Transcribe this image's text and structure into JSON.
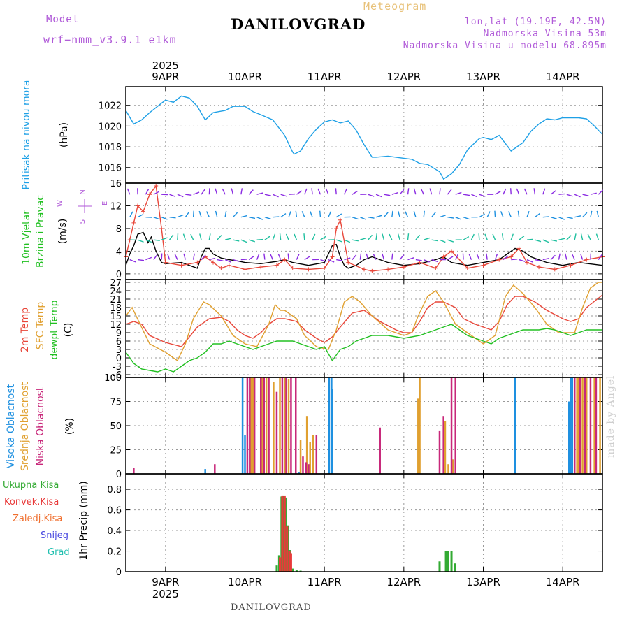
{
  "header": {
    "meteogram_label": "Meteogram",
    "station": "DANILOVGRAD",
    "model_label": "Model",
    "model_name": "wrf−nmm_v3.9.1  e1km",
    "loc_line1": "lon,lat (19.19E, 42.5N)",
    "loc_line2": "Nadmorska Visina 53m",
    "loc_line3": "Nadmorska Visina u modelu 68.895m"
  },
  "footer": {
    "station": "DANILOVGRAD",
    "watermark": "made by Angel"
  },
  "colors": {
    "pressure": "#1ea0e6",
    "temp2m": "#e8473a",
    "sfc": "#e0a030",
    "dewpt": "#22c022",
    "cloud_high": "#1e90e0",
    "cloud_mid": "#e0a030",
    "cloud_low": "#c8287a",
    "precip_total": "#33aa33",
    "precip_conv": "#e83a3a",
    "precip_frz": "#f07030",
    "precip_snow": "#4a4ae0",
    "precip_grad": "#22c0b0",
    "wind_text": "#22c022",
    "wind_units": "#b05ad8"
  },
  "chart_data": [
    {
      "type": "line",
      "panel": "pressure",
      "ylabel_lines": [
        "Pritisak na nivou mora",
        "(hPa)"
      ],
      "ylim": [
        1014.5,
        1023.8
      ],
      "yticks": [
        1016,
        1018,
        1020,
        1022
      ],
      "grid": true,
      "x_axis": {
        "year": "2025",
        "day_labels": [
          "9APR",
          "10APR",
          "11APR",
          "12APR",
          "13APR",
          "14APR"
        ],
        "xlim_days": [
          8.5,
          14.5
        ],
        "day_positions": [
          9,
          10,
          11,
          12,
          13,
          14
        ]
      },
      "series": [
        {
          "color_key": "pressure",
          "x": [
            8.5,
            8.6,
            8.7,
            8.8,
            8.95,
            9.0,
            9.1,
            9.2,
            9.3,
            9.4,
            9.5,
            9.6,
            9.75,
            9.85,
            10.0,
            10.1,
            10.2,
            10.35,
            10.5,
            10.6,
            10.62,
            10.7,
            10.8,
            10.9,
            11.0,
            11.1,
            11.2,
            11.3,
            11.4,
            11.5,
            11.6,
            11.65,
            11.8,
            12.0,
            12.1,
            12.2,
            12.3,
            12.45,
            12.5,
            12.6,
            12.7,
            12.8,
            12.95,
            13.0,
            13.1,
            13.2,
            13.3,
            13.35,
            13.5,
            13.6,
            13.7,
            13.8,
            13.9,
            14.0,
            14.1,
            14.2,
            14.3,
            14.4,
            14.5
          ],
          "values": [
            1021.5,
            1020.2,
            1020.6,
            1021.3,
            1022.2,
            1022.5,
            1022.3,
            1022.9,
            1022.7,
            1021.9,
            1020.6,
            1021.3,
            1021.5,
            1021.9,
            1021.9,
            1021.4,
            1021.1,
            1020.6,
            1019.1,
            1017.5,
            1017.3,
            1017.6,
            1018.8,
            1019.7,
            1020.4,
            1020.6,
            1020.3,
            1020.5,
            1019.6,
            1018.2,
            1017.0,
            1017.0,
            1017.1,
            1016.9,
            1016.8,
            1016.4,
            1016.3,
            1015.6,
            1014.9,
            1015.4,
            1016.3,
            1017.7,
            1018.8,
            1018.9,
            1018.7,
            1019.1,
            1018.1,
            1017.6,
            1018.4,
            1019.5,
            1020.2,
            1020.7,
            1020.6,
            1020.8,
            1020.8,
            1020.8,
            1020.7,
            1020.0,
            1019.2
          ]
        }
      ]
    },
    {
      "type": "line",
      "panel": "wind",
      "ylabel_lines": [
        "10m Vjetar",
        "Brzina i Pravac",
        "(m/s)"
      ],
      "compass_labels": [
        "N",
        "W",
        "E",
        "S"
      ],
      "ylim": [
        -1,
        16
      ],
      "yticks": [
        0,
        4,
        8,
        12,
        16
      ],
      "grid": true,
      "series": [
        {
          "name": "wind speed",
          "color": "#000000",
          "x": [
            8.5,
            8.55,
            8.6,
            8.65,
            8.72,
            8.78,
            8.82,
            8.88,
            8.95,
            9.0,
            9.1,
            9.2,
            9.3,
            9.4,
            9.45,
            9.5,
            9.55,
            9.6,
            9.7,
            9.8,
            9.9,
            10.0,
            10.2,
            10.4,
            10.5,
            10.6,
            10.8,
            11.0,
            11.05,
            11.1,
            11.15,
            11.2,
            11.25,
            11.3,
            11.4,
            11.5,
            11.6,
            11.8,
            12.0,
            12.2,
            12.4,
            12.5,
            12.6,
            12.8,
            13.0,
            13.2,
            13.3,
            13.4,
            13.5,
            13.6,
            13.7,
            13.8,
            14.0,
            14.2,
            14.5
          ],
          "values": [
            1.5,
            3.5,
            5.0,
            7.0,
            7.3,
            5.5,
            6.5,
            4.0,
            2.0,
            1.8,
            1.9,
            2.0,
            1.5,
            1.0,
            3.0,
            4.5,
            4.5,
            3.5,
            2.8,
            2.5,
            2.3,
            2.0,
            1.8,
            2.2,
            2.5,
            2.0,
            1.5,
            2.0,
            3.5,
            5.0,
            5.2,
            3.0,
            1.5,
            1.0,
            1.5,
            2.5,
            3.0,
            2.0,
            1.5,
            1.8,
            2.5,
            3.0,
            2.0,
            1.5,
            2.0,
            2.5,
            3.5,
            4.5,
            4.0,
            3.0,
            2.5,
            2.0,
            1.5,
            2.0,
            1.5
          ]
        },
        {
          "name": "gust",
          "color": "#e8473a",
          "x": [
            8.5,
            8.55,
            8.6,
            8.65,
            8.72,
            8.8,
            8.88,
            8.95,
            9.0,
            9.2,
            9.4,
            9.5,
            9.6,
            9.7,
            9.8,
            10.0,
            10.2,
            10.4,
            10.5,
            10.6,
            10.8,
            11.0,
            11.1,
            11.15,
            11.2,
            11.3,
            11.5,
            11.6,
            11.8,
            12.0,
            12.2,
            12.4,
            12.5,
            12.6,
            12.8,
            13.0,
            13.2,
            13.35,
            13.45,
            13.55,
            13.7,
            13.9,
            14.1,
            14.3,
            14.5
          ],
          "values": [
            3.0,
            6.0,
            9.0,
            12.0,
            11.0,
            14.0,
            15.5,
            8.0,
            2.0,
            1.5,
            2.0,
            3.0,
            2.0,
            1.0,
            1.5,
            0.8,
            1.2,
            1.5,
            2.5,
            1.0,
            0.8,
            1.0,
            3.0,
            8.0,
            9.5,
            2.0,
            0.8,
            0.5,
            0.8,
            1.2,
            2.0,
            1.0,
            3.0,
            4.0,
            1.0,
            1.5,
            2.5,
            3.0,
            4.5,
            2.0,
            1.2,
            0.8,
            1.5,
            2.5,
            3.0
          ]
        }
      ]
    },
    {
      "type": "line",
      "panel": "temperature",
      "ylabel_lines": [
        "2m Temp",
        "SFC Temp",
        "dewpt Temp",
        "(C)"
      ],
      "ylim": [
        -7,
        28
      ],
      "yticks": [
        -6,
        -3,
        0,
        3,
        6,
        9,
        12,
        15,
        18,
        21,
        24,
        27
      ],
      "grid": true,
      "series": [
        {
          "color_key": "temp2m",
          "x": [
            8.5,
            8.6,
            8.7,
            8.8,
            9.0,
            9.2,
            9.3,
            9.4,
            9.55,
            9.7,
            9.8,
            9.9,
            10.0,
            10.1,
            10.2,
            10.3,
            10.4,
            10.5,
            10.65,
            10.75,
            10.9,
            11.0,
            11.1,
            11.2,
            11.35,
            11.5,
            11.6,
            11.7,
            11.9,
            12.0,
            12.1,
            12.2,
            12.3,
            12.4,
            12.5,
            12.65,
            12.75,
            12.9,
            13.1,
            13.2,
            13.3,
            13.4,
            13.5,
            13.65,
            13.8,
            14.0,
            14.1,
            14.2,
            14.3,
            14.5
          ],
          "values": [
            12.0,
            13.0,
            12.0,
            8.0,
            5.5,
            4.0,
            7.5,
            11.0,
            14.0,
            14.5,
            13.0,
            10.0,
            8.0,
            7.0,
            9.0,
            12.0,
            14.0,
            14.0,
            13.0,
            10.0,
            7.0,
            5.5,
            7.5,
            11.0,
            16.0,
            17.0,
            15.0,
            13.0,
            10.0,
            9.0,
            9.0,
            13.0,
            18.0,
            20.0,
            20.0,
            18.0,
            14.0,
            12.0,
            10.0,
            13.0,
            19.0,
            22.0,
            22.0,
            20.0,
            17.0,
            14.0,
            13.0,
            14.0,
            18.0,
            22.5
          ]
        },
        {
          "color_key": "sfc",
          "x": [
            8.5,
            8.58,
            8.68,
            8.8,
            9.0,
            9.15,
            9.25,
            9.35,
            9.48,
            9.55,
            9.7,
            9.85,
            10.0,
            10.15,
            10.3,
            10.38,
            10.45,
            10.5,
            10.65,
            10.75,
            10.9,
            11.05,
            11.15,
            11.25,
            11.35,
            11.45,
            11.6,
            11.8,
            12.0,
            12.1,
            12.18,
            12.3,
            12.4,
            12.5,
            12.65,
            12.8,
            13.0,
            13.15,
            13.28,
            13.38,
            13.5,
            13.65,
            13.8,
            13.95,
            14.15,
            14.25,
            14.35,
            14.45,
            14.5
          ],
          "values": [
            15.0,
            18.0,
            12.0,
            5.0,
            2.0,
            -1.0,
            5.0,
            14.0,
            20.0,
            19.0,
            15.0,
            8.0,
            5.0,
            4.0,
            12.0,
            19.0,
            17.0,
            17.0,
            14.0,
            8.0,
            4.0,
            3.0,
            10.0,
            20.0,
            22.0,
            20.0,
            15.0,
            10.0,
            8.0,
            9.0,
            15.0,
            22.0,
            24.0,
            20.0,
            12.0,
            9.0,
            5.0,
            8.0,
            22.0,
            26.0,
            23.0,
            18.0,
            12.0,
            9.0,
            9.0,
            18.0,
            25.0,
            27.0,
            27.0
          ]
        },
        {
          "color_key": "dewpt",
          "x": [
            8.5,
            8.6,
            8.7,
            8.8,
            8.9,
            9.0,
            9.1,
            9.2,
            9.3,
            9.4,
            9.5,
            9.6,
            9.7,
            9.8,
            9.9,
            10.0,
            10.1,
            10.2,
            10.3,
            10.4,
            10.5,
            10.6,
            10.7,
            10.8,
            10.9,
            11.0,
            11.1,
            11.2,
            11.3,
            11.4,
            11.5,
            11.6,
            11.7,
            11.8,
            11.9,
            12.0,
            12.1,
            12.2,
            12.3,
            12.4,
            12.5,
            12.6,
            12.7,
            12.8,
            12.9,
            13.0,
            13.1,
            13.2,
            13.3,
            13.4,
            13.5,
            13.6,
            13.7,
            13.8,
            13.9,
            14.0,
            14.1,
            14.2,
            14.3,
            14.4,
            14.5
          ],
          "values": [
            2.0,
            -2.0,
            -4.0,
            -4.5,
            -5.0,
            -4.0,
            -5.0,
            -3.0,
            -1.0,
            0.0,
            2.0,
            5.0,
            5.0,
            6.0,
            5.0,
            4.0,
            3.0,
            4.0,
            5.0,
            6.0,
            6.0,
            6.0,
            5.0,
            4.0,
            3.0,
            4.0,
            -1.0,
            3.0,
            4.0,
            6.0,
            7.0,
            8.0,
            8.0,
            8.0,
            7.5,
            7.0,
            7.5,
            8.0,
            9.0,
            10.0,
            11.0,
            12.0,
            10.0,
            8.0,
            7.0,
            6.0,
            5.0,
            7.0,
            8.0,
            9.0,
            10.0,
            10.0,
            10.0,
            10.5,
            10.0,
            9.0,
            8.0,
            9.0,
            10.0,
            10.0,
            10.0
          ]
        }
      ]
    },
    {
      "type": "bar",
      "panel": "cloud",
      "ylabel_lines": [
        "Visoka Oblacnost",
        "Srednja Oblacnost",
        "Niska Oblacnost",
        "(%)"
      ],
      "ylim": [
        0,
        100
      ],
      "yticks": [
        0,
        25,
        50,
        75,
        100
      ],
      "grid": true,
      "series": [
        {
          "color_key": "cloud_high",
          "x": [
            9.5,
            9.97,
            10.0,
            10.68,
            11.06,
            11.09,
            11.1,
            13.4,
            14.08,
            14.1,
            14.12
          ],
          "values": [
            5,
            100,
            40,
            2,
            100,
            100,
            88,
            100,
            75,
            100,
            100
          ]
        },
        {
          "color_key": "cloud_mid",
          "x": [
            10.08,
            10.1,
            10.22,
            10.27,
            10.36,
            10.44,
            10.5,
            10.55,
            10.7,
            10.78,
            10.82,
            10.86,
            12.18,
            12.2,
            12.52,
            12.56,
            12.62,
            14.18,
            14.2,
            14.25,
            14.3,
            14.4,
            14.47
          ],
          "values": [
            100,
            100,
            100,
            100,
            95,
            100,
            100,
            98,
            35,
            60,
            33,
            40,
            78,
            100,
            55,
            10,
            15,
            100,
            100,
            100,
            100,
            100,
            100
          ]
        },
        {
          "color_key": "cloud_low",
          "x": [
            8.6,
            9.62,
            10.03,
            10.06,
            10.12,
            10.2,
            10.24,
            10.3,
            10.4,
            10.47,
            10.52,
            10.58,
            10.64,
            10.73,
            10.77,
            10.8,
            10.9,
            11.7,
            12.45,
            12.5,
            12.6,
            12.65,
            14.15,
            14.22,
            14.28,
            14.35,
            14.42
          ],
          "values": [
            6,
            10,
            100,
            100,
            100,
            100,
            100,
            100,
            85,
            100,
            100,
            100,
            100,
            18,
            12,
            10,
            40,
            48,
            45,
            60,
            100,
            100,
            100,
            100,
            100,
            100,
            100
          ]
        }
      ]
    },
    {
      "type": "bar",
      "panel": "precip",
      "ylabel_lines": [
        "1hr Precip (mm)"
      ],
      "legend": [
        "Ukupna Kisa",
        "Konvek.Kisa",
        "Zaledj.Kisa",
        "Snijeg",
        "Grad"
      ],
      "ylim": [
        0,
        0.95
      ],
      "yticks": [
        0,
        0.2,
        0.4,
        0.6,
        0.8
      ],
      "grid": true,
      "series": [
        {
          "color_key": "precip_total",
          "x": [
            10.4,
            10.43,
            10.46,
            10.48,
            10.51,
            10.54,
            10.57,
            10.6,
            10.65,
            10.7,
            12.45,
            12.53,
            12.56,
            12.6,
            12.64
          ],
          "values": [
            0.06,
            0.16,
            0.73,
            0.74,
            0.72,
            0.45,
            0.21,
            0.03,
            0.02,
            0.01,
            0.1,
            0.2,
            0.2,
            0.2,
            0.08
          ]
        },
        {
          "color_key": "precip_conv",
          "x": [
            10.44,
            10.47,
            10.5,
            10.53,
            10.56,
            10.58
          ],
          "values": [
            0.14,
            0.74,
            0.74,
            0.44,
            0.2,
            0.18
          ]
        }
      ]
    }
  ]
}
